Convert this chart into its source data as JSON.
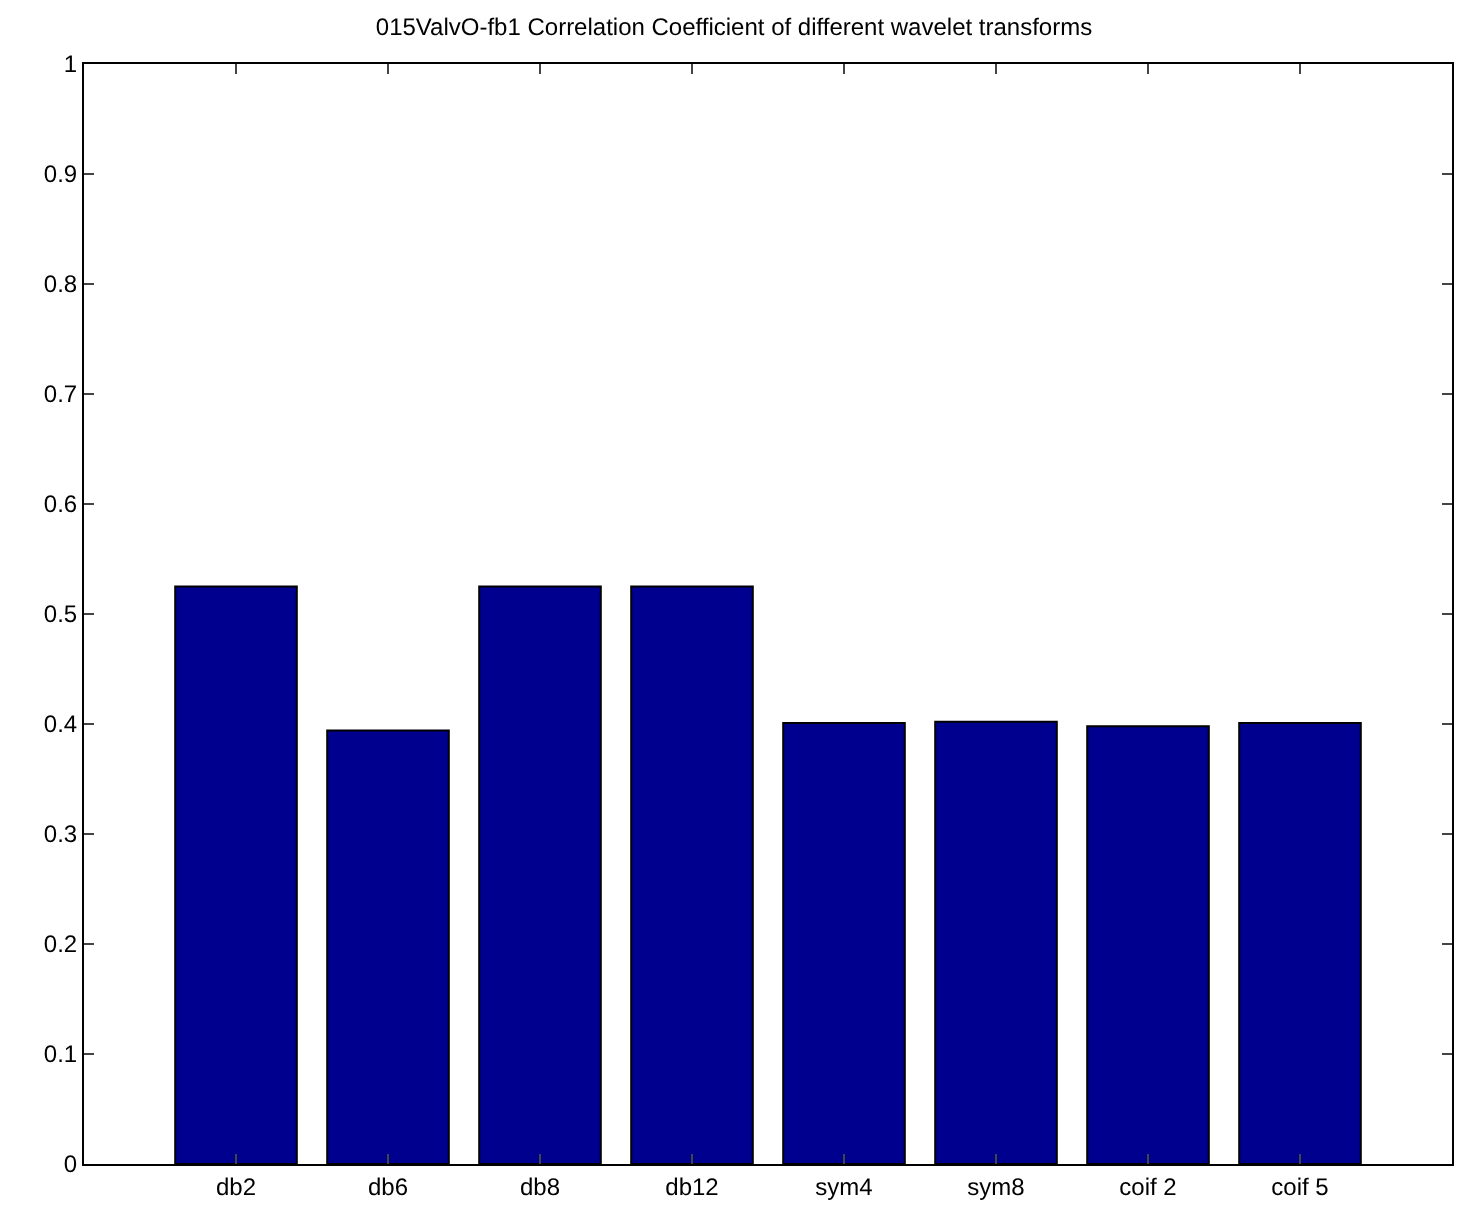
{
  "chart_data": {
    "type": "bar",
    "title": "015ValvO-fb1 Correlation Coefficient of different wavelet transforms",
    "categories": [
      "db2",
      "db6",
      "db8",
      "db12",
      "sym4",
      "sym8",
      "coif 2",
      "coif 5"
    ],
    "values": [
      0.525,
      0.394,
      0.525,
      0.525,
      0.401,
      0.402,
      0.398,
      0.401
    ],
    "color": "#00008f",
    "ylim": [
      0,
      1
    ],
    "yticks": [
      0,
      0.1,
      0.2,
      0.3,
      0.4,
      0.5,
      0.6,
      0.7,
      0.8,
      0.9,
      1
    ],
    "grid": false,
    "legend": false
  }
}
